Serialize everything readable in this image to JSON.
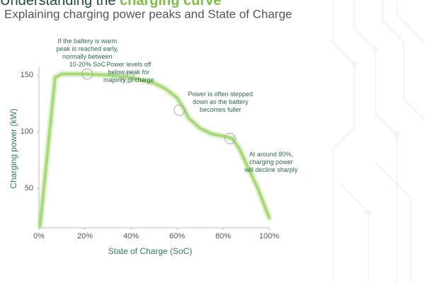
{
  "chart_data": {
    "type": "line",
    "title": "Understanding the",
    "title_highlight": "charging curve",
    "subtitle": "Explaining charging power peaks and State of Charge",
    "x_label": "State of Charge (SoC)",
    "y_label": "Charging power (kW)",
    "x": [
      0.5,
      7,
      10,
      20,
      30,
      40,
      50,
      55,
      60,
      63,
      65,
      70,
      75,
      80,
      84,
      87,
      90,
      95,
      100
    ],
    "series": [
      {
        "name": "Charging power",
        "color": "#a8d878",
        "values": [
          17,
          148,
          151,
          151,
          150,
          148,
          143,
          138,
          130,
          120,
          112,
          103,
          98,
          96,
          94,
          85,
          72,
          50,
          24
        ]
      }
    ],
    "xlim": [
      0,
      100
    ],
    "xticks": [
      {
        "value": 0,
        "label": "0%"
      },
      {
        "value": 20,
        "label": "20%"
      },
      {
        "value": 40,
        "label": "40%"
      },
      {
        "value": 60,
        "label": "60%"
      },
      {
        "value": 80,
        "label": "80%"
      },
      {
        "value": 100,
        "label": "100%"
      }
    ],
    "ylim": [
      15,
      157
    ],
    "yticks": [
      50,
      100,
      150
    ],
    "annotations": [
      {
        "x": 21,
        "y": 151,
        "lines": [
          "If the battery is warm",
          "peak is reached early,",
          "normally between",
          "10-20% SoC"
        ]
      },
      {
        "x": 39,
        "y": 148,
        "lines": [
          "Power levels off",
          "below peak for",
          "majority of charge"
        ]
      },
      {
        "x": 61,
        "y": 119,
        "lines": [
          "Power is often stepped",
          "down as the battery",
          "becomes fuller"
        ]
      },
      {
        "x": 83,
        "y": 94,
        "lines": [
          "At around 80%,",
          "charging power",
          "will decline sharply"
        ]
      }
    ]
  }
}
